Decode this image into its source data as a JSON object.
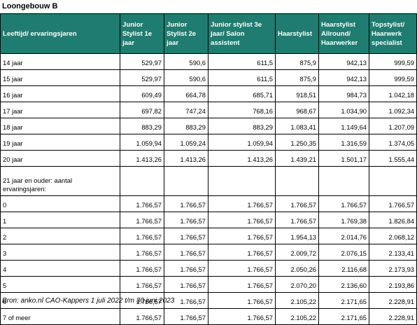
{
  "title": "Loongebouw B",
  "table": {
    "headers": [
      "Leeftijd/ ervaringsjaren",
      "Junior\nStylist 1e\njaar",
      "Junior\nStylist 2e\njaar",
      "Junior stylist 3e\njaar/ Salon\nassistent",
      "Haarstylist",
      "Haarstylist\nAllround/\nHaarwerker",
      "Topstylist/\nHaarwerk\nspecialist"
    ],
    "header_color": "#1e7d70",
    "rows": [
      [
        "14 jaar",
        "529,97",
        "590,6",
        "611,5",
        "875,9",
        "942,13",
        "999,59"
      ],
      [
        "15 jaar",
        "529,97",
        "590,6",
        "611,5",
        "875,9",
        "942,13",
        "999,59"
      ],
      [
        "16 jaar",
        "609,49",
        "664,78",
        "685,71",
        "918,51",
        "984,73",
        "1.042,18"
      ],
      [
        "17 jaar",
        "697,82",
        "747,24",
        "768,16",
        "968,67",
        "1.034,90",
        "1.092,34"
      ],
      [
        "18 jaar",
        "883,29",
        "883,29",
        "883,29",
        "1.083,41",
        "1.149,64",
        "1.207,09"
      ],
      [
        "19 jaar",
        "1.059,94",
        "1.059,24",
        "1.059,94",
        "1.250,35",
        "1.316,59",
        "1.374,05"
      ],
      [
        "20 jaar",
        "1.413,26",
        "1.413,26",
        "1.413,26",
        "1.439,21",
        "1.501,17",
        "1.555,44"
      ],
      [
        "21 jaar en ouder: aantal\nervaringsjaren:",
        "",
        "",
        "",
        "",
        "",
        ""
      ],
      [
        "0",
        "1.766,57",
        "1.766,57",
        "1.766,57",
        "1.766,57",
        "1.766,57",
        "1.766,57"
      ],
      [
        "1",
        "1.766,57",
        "1.766,57",
        "1.766,57",
        "1.766,57",
        "1.769,38",
        "1.826,84"
      ],
      [
        "2",
        "1.766,57",
        "1.766,57",
        "1.766,57",
        "1.954,13",
        "2.014,76",
        "2.068,12"
      ],
      [
        "3",
        "1.766,57",
        "1.766,57",
        "1.766,57",
        "2.009,72",
        "2.076,15",
        "2.133,41"
      ],
      [
        "4",
        "1.766,57",
        "1.766,57",
        "1.766,57",
        "2.050,26",
        "2.116,68",
        "2.173,93"
      ],
      [
        "5",
        "1.766,57",
        "1.766,57",
        "1.766,57",
        "2.070,20",
        "2.136,60",
        "2.193,86"
      ],
      [
        "6",
        "1.766,57",
        "1.766,57",
        "1.766,57",
        "2.105,22",
        "2.171,65",
        "2.228,91"
      ],
      [
        "7 of meer",
        "1.766,57",
        "1.766,57",
        "1.766,57",
        "2.105,22",
        "2.171,65",
        "2.228,91"
      ]
    ]
  },
  "source": "Bron: anko.nl CAO-Kappers 1 juli 2022 t/m 30 juni 2023"
}
